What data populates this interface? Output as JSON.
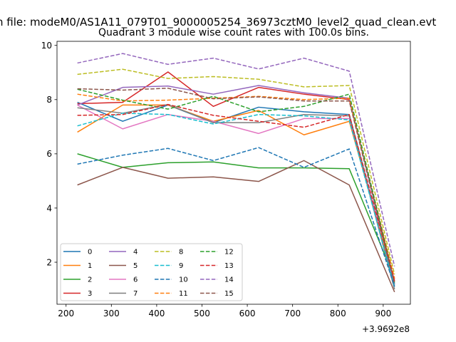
{
  "figure": {
    "suptitle": "n file: modeM0/AS1A11_079T01_9000005254_36973cztM0_level2_quad_clean.evt",
    "title": "Quadrant 3 module wise count rates with 100.0s bins.",
    "x_offset_text": "+3.9692e8"
  },
  "chart_data": {
    "type": "line",
    "title": "Quadrant 3 module wise count rates with 100.0s bins.",
    "xlabel": "",
    "ylabel": "",
    "x_offset": 396920000,
    "x": [
      225,
      325,
      425,
      525,
      625,
      725,
      825,
      925
    ],
    "xlim": [
      180,
      960
    ],
    "ylim": [
      0.45,
      10.15
    ],
    "xticks": [
      200,
      300,
      400,
      500,
      600,
      700,
      800,
      900
    ],
    "yticks": [
      2,
      4,
      6,
      8,
      10
    ],
    "grid": false,
    "legend": {
      "location": "lower-left",
      "columns": 4
    },
    "series": [
      {
        "name": "0",
        "color": "#1f77b4",
        "dash": "solid",
        "values": [
          7.9,
          7.2,
          7.8,
          7.15,
          7.72,
          7.55,
          7.45,
          1.2
        ]
      },
      {
        "name": "1",
        "color": "#ff7f0e",
        "dash": "solid",
        "values": [
          6.8,
          7.8,
          7.8,
          7.2,
          7.6,
          6.7,
          7.2,
          1.3
        ]
      },
      {
        "name": "2",
        "color": "#2ca02c",
        "dash": "solid",
        "values": [
          6.0,
          5.5,
          5.67,
          5.7,
          5.48,
          5.48,
          5.45,
          1.4
        ]
      },
      {
        "name": "3",
        "color": "#d62728",
        "dash": "solid",
        "values": [
          7.85,
          7.9,
          9.02,
          7.75,
          8.45,
          8.2,
          8.0,
          1.3
        ]
      },
      {
        "name": "4",
        "color": "#9467bd",
        "dash": "solid",
        "values": [
          7.8,
          8.45,
          8.5,
          8.2,
          8.52,
          8.25,
          8.05,
          1.15
        ]
      },
      {
        "name": "5",
        "color": "#8c564b",
        "dash": "solid",
        "values": [
          4.85,
          5.5,
          5.1,
          5.15,
          4.98,
          5.75,
          4.85,
          0.9
        ]
      },
      {
        "name": "6",
        "color": "#e377c2",
        "dash": "solid",
        "values": [
          7.8,
          6.92,
          7.45,
          7.2,
          6.75,
          7.3,
          7.3,
          1.35
        ]
      },
      {
        "name": "7",
        "color": "#7f7f7f",
        "dash": "solid",
        "values": [
          7.7,
          7.5,
          7.82,
          7.15,
          7.15,
          7.45,
          7.4,
          1.0
        ]
      },
      {
        "name": "8",
        "color": "#bcbd22",
        "dash": "dashed",
        "values": [
          8.93,
          9.12,
          8.78,
          8.85,
          8.75,
          8.47,
          8.52,
          1.55
        ]
      },
      {
        "name": "9",
        "color": "#17becf",
        "dash": "dashed",
        "values": [
          7.03,
          7.5,
          7.45,
          7.1,
          7.45,
          7.4,
          7.25,
          1.1
        ]
      },
      {
        "name": "10",
        "color": "#1f77b4",
        "dash": "dashed",
        "values": [
          5.62,
          5.95,
          6.2,
          5.75,
          6.23,
          5.5,
          6.18,
          1.1
        ]
      },
      {
        "name": "11",
        "color": "#ff7f0e",
        "dash": "dashed",
        "values": [
          8.2,
          7.95,
          7.98,
          8.05,
          8.12,
          8.0,
          8.05,
          1.4
        ]
      },
      {
        "name": "12",
        "color": "#2ca02c",
        "dash": "dashed",
        "values": [
          8.38,
          7.98,
          7.65,
          8.12,
          7.55,
          7.75,
          8.2,
          1.25
        ]
      },
      {
        "name": "13",
        "color": "#d62728",
        "dash": "dashed",
        "values": [
          7.42,
          7.45,
          7.82,
          7.42,
          7.2,
          6.98,
          7.45,
          1.3
        ]
      },
      {
        "name": "14",
        "color": "#9467bd",
        "dash": "dashed",
        "values": [
          9.35,
          9.7,
          9.3,
          9.53,
          9.13,
          9.53,
          9.05,
          1.85
        ]
      },
      {
        "name": "15",
        "color": "#8c564b",
        "dash": "dashed",
        "values": [
          8.4,
          8.35,
          8.42,
          8.03,
          8.1,
          7.95,
          7.95,
          1.2
        ]
      }
    ]
  }
}
